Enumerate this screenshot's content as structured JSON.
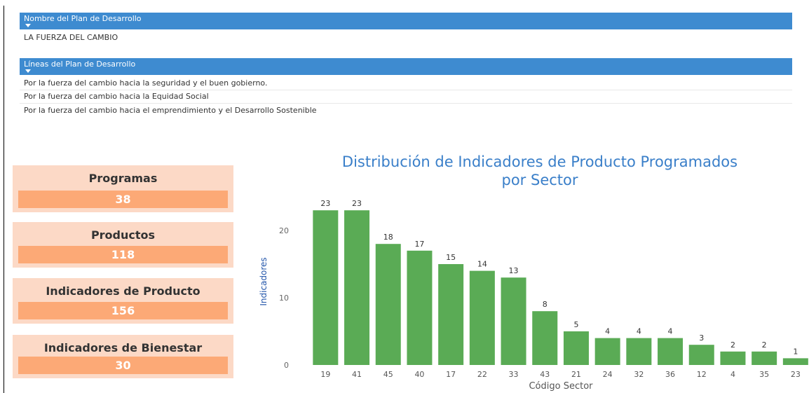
{
  "plan": {
    "header": "Nombre del Plan de Desarrollo",
    "name": "LA FUERZA DEL CAMBIO"
  },
  "lines": {
    "header": "Líneas del Plan de Desarrollo",
    "items": [
      "Por la fuerza del cambio hacia la seguridad y el buen gobierno.",
      "Por la fuerza del cambio hacia la Equidad Social",
      "Por la fuerza del cambio hacia el emprendimiento y el Desarrollo Sostenible"
    ]
  },
  "cards": [
    {
      "label": "Programas",
      "value": 38
    },
    {
      "label": "Productos",
      "value": 118
    },
    {
      "label": "Indicadores de Producto",
      "value": 156
    },
    {
      "label": "Indicadores de Bienestar",
      "value": 30
    }
  ],
  "chart_data": {
    "type": "bar",
    "title": "Distribución de Indicadores de Producto Programados",
    "subtitle": "por Sector",
    "x_label": "Código Sector",
    "y_label": "Indicadores",
    "categories": [
      "19",
      "41",
      "45",
      "40",
      "17",
      "22",
      "33",
      "43",
      "21",
      "24",
      "32",
      "36",
      "12",
      "4",
      "35",
      "23"
    ],
    "values": [
      23,
      23,
      18,
      17,
      15,
      14,
      13,
      8,
      5,
      4,
      4,
      4,
      3,
      2,
      2,
      1
    ],
    "color": "#5aab55",
    "ylim": [
      0,
      25
    ],
    "yticks": [
      0,
      10,
      20
    ],
    "grid": false
  }
}
